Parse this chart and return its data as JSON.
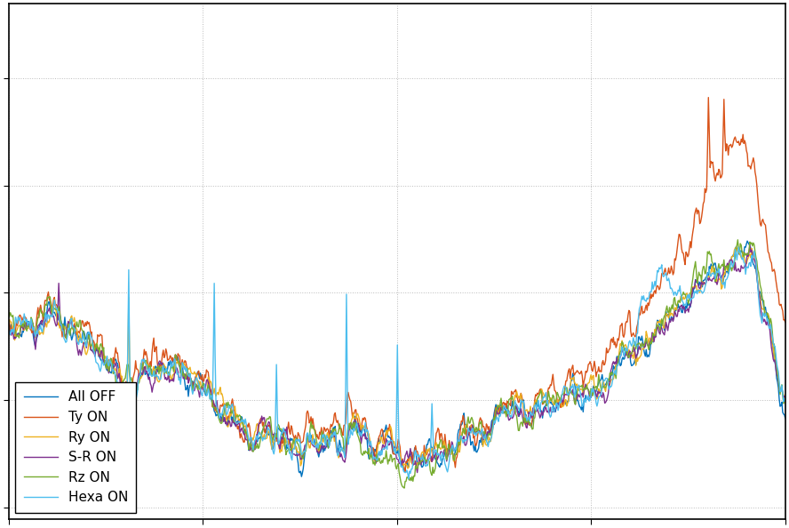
{
  "background_color": "#ffffff",
  "plot_bg_color": "#ffffff",
  "grid_color": "#bbbbbb",
  "legend_labels": [
    "All OFF",
    "Ty ON",
    "Ry ON",
    "S-R ON",
    "Rz ON",
    "Hexa ON"
  ],
  "line_colors": [
    "#0072BD",
    "#D95319",
    "#EDB120",
    "#7E2F8E",
    "#77AC30",
    "#4DBEEE"
  ],
  "line_widths": [
    1.0,
    1.0,
    1.0,
    1.0,
    1.0,
    1.0
  ],
  "legend_fontsize": 11,
  "figsize": [
    8.88,
    5.94
  ],
  "dpi": 100
}
